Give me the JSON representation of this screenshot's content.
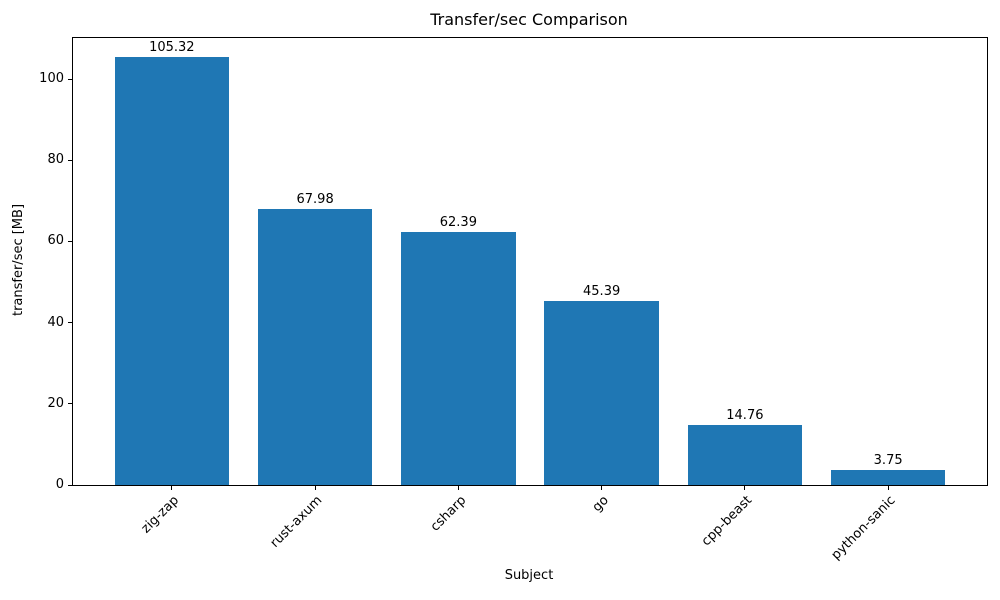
{
  "chart_data": {
    "type": "bar",
    "title": "Transfer/sec Comparison",
    "xlabel": "Subject",
    "ylabel": "transfer/sec [MB]",
    "categories": [
      "zig-zap",
      "rust-axum",
      "csharp",
      "go",
      "cpp-beast",
      "python-sanic"
    ],
    "values": [
      105.32,
      67.98,
      62.39,
      45.39,
      14.76,
      3.75
    ],
    "bar_value_labels": [
      "105.32",
      "67.98",
      "62.39",
      "45.39",
      "14.76",
      "3.75"
    ],
    "yticks": [
      0,
      20,
      40,
      60,
      80,
      100
    ],
    "ytick_labels": [
      "0",
      "20",
      "40",
      "60",
      "80",
      "100"
    ],
    "ylim": [
      0,
      110.1
    ],
    "xlim": [
      -0.69,
      5.69
    ],
    "bar_width_units": 0.8,
    "bar_color": "#1f77b4",
    "spine_color": "#000000",
    "text_color": "#000000",
    "grid": false,
    "legend": null
  }
}
